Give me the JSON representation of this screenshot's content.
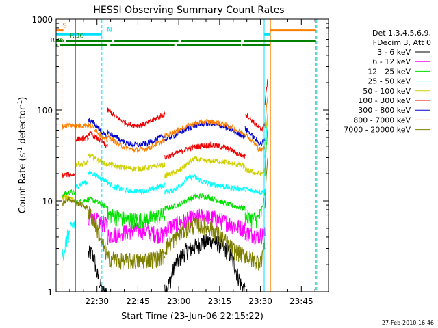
{
  "chart_data": {
    "type": "line",
    "title": "HESSI Observing Summary Count Rates",
    "xlabel": "Start Time (23-Jun-06 22:15:22)",
    "ylabel_main": "Count Rate (s",
    "ylabel_sup1": "-1",
    "ylabel_mid": " detector",
    "ylabel_sup2": "-1",
    "ylabel_end": ")",
    "y_scale": "log",
    "ylim": [
      1,
      1000
    ],
    "xlim_minutes": [
      -0.37,
      99.6
    ],
    "x_ticks": [
      {
        "m": 14.63,
        "label": "22:30"
      },
      {
        "m": 29.63,
        "label": "22:45"
      },
      {
        "m": 44.63,
        "label": "23:00"
      },
      {
        "m": 59.63,
        "label": "23:15"
      },
      {
        "m": 74.63,
        "label": "23:30"
      },
      {
        "m": 89.63,
        "label": "23:45"
      }
    ],
    "y_ticks": [
      {
        "v": 1,
        "label": "1"
      },
      {
        "v": 10,
        "label": "10"
      },
      {
        "v": 100,
        "label": "100"
      },
      {
        "v": 1000,
        "label": "1000"
      }
    ],
    "grid": false,
    "legend_position": "right",
    "legend": {
      "header1": "Det 1,3,4,5,6,9,",
      "header2": "FDecim 3, Att 0"
    },
    "series": [
      {
        "name": "3 - 6 keV",
        "color": "#000000",
        "segments": [
          {
            "x0": 11.5,
            "x1": 18.5,
            "y": [
              2.6,
              2.7,
              2.4,
              1.6,
              1.3,
              1.0,
              1.0,
              1.0
            ]
          },
          {
            "x0": 39.5,
            "x1": 57.0,
            "y": [
              1.0,
              1.3,
              2.0,
              2.4,
              2.8,
              3.0,
              3.2,
              3.5,
              3.6,
              3.7
            ]
          },
          {
            "x0": 57.0,
            "x1": 69.0,
            "y": [
              3.6,
              3.5,
              3.3,
              3.0,
              2.7,
              2.2,
              1.6,
              1.2,
              1.0
            ]
          }
        ]
      },
      {
        "name": "6 - 12 keV",
        "color": "#ff00ff",
        "segments": [
          {
            "x0": 11.5,
            "x1": 18.5,
            "y": [
              6.3,
              6.6,
              6.4,
              6.0,
              5.8,
              5.6,
              5.5
            ]
          },
          {
            "x0": 18.5,
            "x1": 39.5,
            "y": [
              4.2,
              4.3,
              4.5,
              4.6,
              4.8,
              4.8,
              4.7,
              4.5,
              4.3,
              4.2
            ]
          },
          {
            "x0": 39.5,
            "x1": 69.0,
            "y": [
              5.0,
              5.3,
              5.8,
              6.2,
              6.6,
              6.8,
              6.7,
              6.4,
              6.0,
              5.6,
              5.2,
              5.0
            ]
          },
          {
            "x0": 69.0,
            "x1": 76.3,
            "y": [
              4.5,
              4.4,
              4.3,
              4.2,
              4.2,
              4.3
            ]
          }
        ]
      },
      {
        "name": "12 - 25 keV",
        "color": "#00e000",
        "segments": [
          {
            "x0": 1.8,
            "x1": 6.8,
            "y": [
              11.5,
              12.0,
              12.2,
              12.5,
              12.3,
              12.0
            ]
          },
          {
            "x0": 6.8,
            "x1": 11.5,
            "y": [
              9.5,
              9.8,
              10.0,
              10.2,
              10.3
            ]
          },
          {
            "x0": 11.5,
            "x1": 18.5,
            "y": [
              10.5,
              10.3,
              10.0,
              9.6,
              9.2,
              8.8,
              8.6
            ]
          },
          {
            "x0": 18.5,
            "x1": 39.5,
            "y": [
              7.2,
              6.8,
              6.5,
              6.3,
              6.2,
              6.2,
              6.3,
              6.5,
              6.8,
              7.0
            ]
          },
          {
            "x0": 39.5,
            "x1": 69.0,
            "y": [
              8.2,
              8.6,
              9.2,
              10.2,
              11.0,
              11.3,
              11.0,
              10.3,
              9.6,
              9.0,
              8.6,
              8.3
            ]
          },
          {
            "x0": 69.0,
            "x1": 76.3,
            "y": [
              6.6,
              6.5,
              6.4,
              6.3,
              6.4,
              7.5,
              12.0
            ]
          },
          {
            "x0": 76.3,
            "x1": 77.3,
            "y": [
              20.0,
              60.0
            ]
          }
        ]
      },
      {
        "name": "25 - 50 keV",
        "color": "#00ffff",
        "segments": [
          {
            "x0": 1.8,
            "x1": 6.8,
            "y": [
              2.6,
              3.0,
              4.0,
              4.6,
              5.4,
              5.8
            ]
          },
          {
            "x0": 6.8,
            "x1": 11.5,
            "y": [
              14.0,
              15.0,
              15.5,
              16.0,
              16.0
            ]
          },
          {
            "x0": 11.5,
            "x1": 18.5,
            "y": [
              20.0,
              20.5,
              19.5,
              18.5,
              17.5,
              17.0,
              16.5
            ]
          },
          {
            "x0": 18.5,
            "x1": 39.5,
            "y": [
              16.0,
              14.5,
              13.6,
              13.0,
              12.8,
              12.8,
              13.0,
              13.5,
              14.3,
              15.0
            ]
          },
          {
            "x0": 39.5,
            "x1": 69.0,
            "y": [
              12.5,
              13.0,
              14.5,
              17.5,
              18.5,
              16.5,
              15.5,
              15.0,
              14.5,
              14.0,
              13.6,
              13.4
            ]
          },
          {
            "x0": 69.0,
            "x1": 76.3,
            "y": [
              13.5,
              13.2,
              13.0,
              12.8,
              12.6,
              12.5,
              13.0
            ]
          },
          {
            "x0": 76.3,
            "x1": 77.3,
            "y": [
              30.0,
              80.0
            ]
          }
        ]
      },
      {
        "name": "50 - 100 keV",
        "color": "#d0d000",
        "segments": [
          {
            "x0": 1.8,
            "x1": 6.8,
            "y": [
              10.5,
              11.0,
              10.8,
              10.5,
              10.3,
              10.2
            ]
          },
          {
            "x0": 6.8,
            "x1": 11.5,
            "y": [
              25.0,
              25.5,
              25.5,
              26.0,
              26.0
            ]
          },
          {
            "x0": 11.5,
            "x1": 18.5,
            "y": [
              32.0,
              31.0,
              29.5,
              28.0,
              27.0,
              26.0,
              25.0
            ]
          },
          {
            "x0": 18.5,
            "x1": 39.5,
            "y": [
              26.0,
              24.5,
              23.5,
              23.0,
              22.7,
              22.7,
              23.0,
              23.5,
              24.5,
              25.0
            ]
          },
          {
            "x0": 39.5,
            "x1": 69.0,
            "y": [
              19.0,
              20.0,
              21.5,
              25.0,
              29.0,
              28.0,
              27.5,
              27.5,
              27.0,
              26.0,
              25.0,
              24.0
            ]
          },
          {
            "x0": 69.0,
            "x1": 76.3,
            "y": [
              22.0,
              21.5,
              21.0,
              20.5,
              20.0,
              20.0,
              22.0
            ]
          },
          {
            "x0": 76.3,
            "x1": 77.3,
            "y": [
              40.0,
              90.0
            ]
          }
        ]
      },
      {
        "name": "100 - 300 keV",
        "color": "#ee0000",
        "segments": [
          {
            "x0": 1.8,
            "x1": 6.8,
            "y": [
              19.0,
              19.5,
              19.5,
              19.5,
              19.5,
              19.5
            ]
          },
          {
            "x0": 6.8,
            "x1": 11.5,
            "y": [
              48.0,
              48.0,
              48.5,
              49.0,
              49.0
            ]
          },
          {
            "x0": 11.5,
            "x1": 18.5,
            "y": [
              55.0,
              54.0,
              51.0,
              48.0,
              45.0,
              42.0,
              40.0
            ]
          },
          {
            "x0": 18.5,
            "x1": 39.5,
            "y": [
              100.0,
              88.0,
              78.0,
              71.0,
              68.0,
              68.0,
              70.0,
              76.0,
              84.0,
              90.0
            ]
          },
          {
            "x0": 39.5,
            "x1": 69.0,
            "y": [
              30.0,
              32.0,
              34.5,
              37.0,
              39.0,
              40.5,
              41.0,
              40.5,
              39.0,
              36.5,
              33.0,
              31.0
            ]
          },
          {
            "x0": 69.0,
            "x1": 76.3,
            "y": [
              92.0,
              85.0,
              77.0,
              70.0,
              64.0,
              62.0,
              70.0
            ]
          },
          {
            "x0": 76.3,
            "x1": 77.3,
            "y": [
              120.0,
              210.0
            ]
          }
        ]
      },
      {
        "name": "300 - 800 keV",
        "color": "#0000d0",
        "segments": [
          {
            "x0": 11.5,
            "x1": 18.5,
            "y": [
              78.0,
              76.0,
              70.0,
              64.0,
              58.0,
              53.0,
              50.0
            ]
          },
          {
            "x0": 18.5,
            "x1": 39.5,
            "y": [
              58.0,
              52.0,
              47.0,
              43.0,
              41.5,
              41.5,
              42.5,
              45.0,
              49.0,
              52.0
            ]
          },
          {
            "x0": 39.5,
            "x1": 69.0,
            "y": [
              47.0,
              51.0,
              56.0,
              62.0,
              67.0,
              70.0,
              71.0,
              69.0,
              66.0,
              61.0,
              55.0,
              51.0
            ]
          },
          {
            "x0": 69.0,
            "x1": 76.3,
            "y": [
              62.0,
              58.0,
              53.0,
              48.0,
              44.0,
              42.0,
              48.0
            ]
          }
        ]
      },
      {
        "name": "800 - 7000 keV",
        "color": "#ff8000",
        "segments": [
          {
            "x0": 1.8,
            "x1": 6.8,
            "y": [
              65.0,
              67.0,
              68.0,
              68.0,
              68.0,
              68.0
            ]
          },
          {
            "x0": 6.8,
            "x1": 11.5,
            "y": [
              66.0,
              67.0,
              68.0,
              68.0,
              68.0
            ]
          },
          {
            "x0": 11.5,
            "x1": 18.5,
            "y": [
              68.0,
              66.0,
              62.0,
              57.0,
              52.0,
              48.0,
              46.0
            ]
          },
          {
            "x0": 18.5,
            "x1": 39.5,
            "y": [
              52.0,
              46.0,
              41.0,
              38.0,
              36.5,
              36.5,
              37.5,
              40.0,
              43.5,
              46.0
            ]
          },
          {
            "x0": 39.5,
            "x1": 69.0,
            "y": [
              52.0,
              56.0,
              61.0,
              66.0,
              71.0,
              74.0,
              75.0,
              73.0,
              70.0,
              65.0,
              59.0,
              55.0
            ]
          },
          {
            "x0": 69.0,
            "x1": 76.3,
            "y": [
              54.0,
              50.0,
              46.0,
              42.0,
              38.0,
              36.0,
              40.0
            ]
          },
          {
            "x0": 76.3,
            "x1": 77.3,
            "y": [
              60.0,
              150.0
            ]
          }
        ]
      },
      {
        "name": "7000 - 20000 keV",
        "color": "#808000",
        "segments": [
          {
            "x0": 1.8,
            "x1": 6.8,
            "y": [
              9.0,
              10.0,
              10.5,
              10.3,
              10.0,
              9.8
            ]
          },
          {
            "x0": 6.8,
            "x1": 11.5,
            "y": [
              9.5,
              9.3,
              9.0,
              8.6,
              8.2
            ]
          },
          {
            "x0": 11.5,
            "x1": 18.5,
            "y": [
              7.5,
              6.8,
              5.8,
              4.6,
              3.6,
              3.0,
              2.6
            ]
          },
          {
            "x0": 18.5,
            "x1": 39.5,
            "y": [
              2.4,
              2.3,
              2.2,
              2.2,
              2.2,
              2.2,
              2.3,
              2.3,
              2.4,
              2.5
            ]
          },
          {
            "x0": 39.5,
            "x1": 69.0,
            "y": [
              3.0,
              3.6,
              4.4,
              5.0,
              5.4,
              5.4,
              5.2,
              4.6,
              3.8,
              3.1,
              2.7,
              2.5
            ]
          },
          {
            "x0": 69.0,
            "x1": 76.3,
            "y": [
              2.6,
              2.4,
              2.3,
              2.2,
              2.2,
              2.4,
              3.5
            ]
          },
          {
            "x0": 76.3,
            "x1": 77.3,
            "y": [
              8.0,
              30.0
            ]
          }
        ]
      }
    ],
    "state_bars": [
      {
        "key": "S",
        "color": "#ff8000",
        "y": 750,
        "label": "S",
        "label_at": 2.0,
        "intervals": [
          [
            -0.37,
            2.3
          ],
          [
            78.3,
            95.0
          ]
        ]
      },
      {
        "key": "N",
        "color": "#00e0ff",
        "y": 680,
        "label": "N",
        "label_at": 18.3,
        "intervals": [
          [
            -0.37,
            16.4
          ],
          [
            76.0,
            78.3
          ]
        ]
      },
      {
        "key": "RD0",
        "color": "#008000",
        "y": 580,
        "label": "RD0",
        "label_at": 4.6,
        "intervals": [
          [
            -0.37,
            2.0
          ],
          [
            3.3,
            20.0
          ],
          [
            21.0,
            44.5
          ],
          [
            45.5,
            67.5
          ],
          [
            68.5,
            95.0
          ]
        ]
      },
      {
        "key": "RB6",
        "color": "#008000",
        "y": 520,
        "label": "RB6",
        "label_at": -2.5,
        "intervals": [
          [
            -0.37,
            0.2
          ],
          [
            1.0,
            18.3
          ],
          [
            19.5,
            43.0
          ],
          [
            44.0,
            67.5
          ],
          [
            68.0,
            78.0
          ]
        ]
      }
    ],
    "vertical_markers": [
      {
        "m": 1.8,
        "color": "#ff8000",
        "style": "dashed"
      },
      {
        "m": 6.8,
        "color": "#00e000",
        "style": "solid"
      },
      {
        "m": 16.4,
        "color": "#00e0ff",
        "style": "dashed"
      },
      {
        "m": 76.0,
        "color": "#00e0ff",
        "style": "solid"
      },
      {
        "m": 78.3,
        "color": "#ff8000",
        "style": "solid"
      },
      {
        "m": 95.0,
        "color": "#ff8000",
        "style": "dashed"
      },
      {
        "m": 95.3,
        "color": "#00e0ff",
        "style": "dashed"
      }
    ],
    "data_gaps": [
      [
        18.5,
        19.5
      ],
      [
        39.5,
        40.5
      ],
      [
        69.0,
        70.0
      ]
    ],
    "footer_date": "27-Feb-2010 16:46"
  }
}
